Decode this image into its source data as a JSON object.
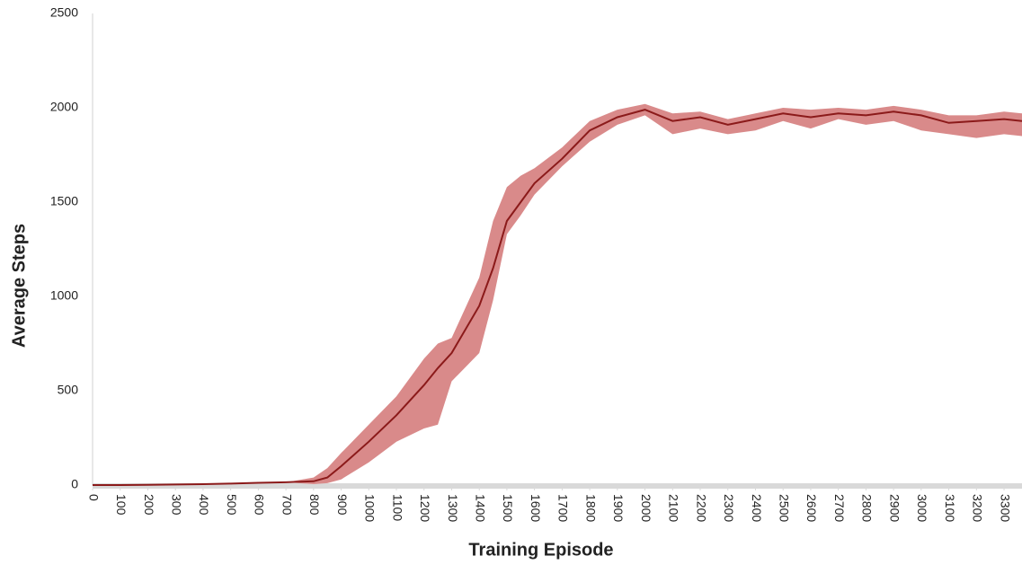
{
  "chart_data": {
    "type": "line",
    "x_label": "Training Episode",
    "y_label": "Average Steps",
    "x": [
      0,
      100,
      200,
      300,
      400,
      500,
      600,
      700,
      800,
      850,
      900,
      1000,
      1100,
      1200,
      1250,
      1300,
      1400,
      1450,
      1500,
      1550,
      1600,
      1700,
      1800,
      1900,
      2000,
      2100,
      2200,
      2300,
      2400,
      2500,
      2600,
      2700,
      2800,
      2900,
      3000,
      3100,
      3200,
      3300,
      3365
    ],
    "series": [
      {
        "color": "#8b1a1a",
        "values": [
          0,
          0,
          1,
          3,
          5,
          8,
          12,
          15,
          20,
          40,
          100,
          230,
          370,
          530,
          620,
          700,
          950,
          1150,
          1400,
          1500,
          1600,
          1730,
          1880,
          1950,
          1990,
          1930,
          1950,
          1910,
          1940,
          1970,
          1950,
          1970,
          1960,
          1980,
          1960,
          1920,
          1930,
          1940,
          1930
        ]
      }
    ],
    "band": {
      "color": "#d98a8a",
      "upper": [
        0,
        0,
        1,
        3,
        5,
        8,
        12,
        15,
        40,
        90,
        170,
        320,
        470,
        670,
        750,
        780,
        1100,
        1400,
        1580,
        1640,
        1680,
        1790,
        1930,
        1990,
        2020,
        1970,
        1980,
        1940,
        1970,
        2000,
        1990,
        2000,
        1990,
        2010,
        1990,
        1960,
        1960,
        1980,
        1970
      ],
      "lower": [
        0,
        0,
        1,
        3,
        5,
        8,
        12,
        15,
        5,
        10,
        30,
        120,
        230,
        300,
        320,
        550,
        700,
        980,
        1330,
        1430,
        1540,
        1690,
        1820,
        1910,
        1960,
        1860,
        1890,
        1860,
        1880,
        1930,
        1890,
        1940,
        1910,
        1930,
        1880,
        1860,
        1840,
        1860,
        1850
      ]
    },
    "xlim": [
      0,
      3365
    ],
    "ylim": [
      0,
      2500
    ],
    "xticks": [
      0,
      100,
      200,
      300,
      400,
      500,
      600,
      700,
      800,
      900,
      1000,
      1100,
      1200,
      1300,
      1400,
      1500,
      1600,
      1700,
      1800,
      1900,
      2000,
      2100,
      2200,
      2300,
      2400,
      2500,
      2600,
      2700,
      2800,
      2900,
      3000,
      3100,
      3200,
      3300
    ],
    "yticks": [
      0,
      500,
      1000,
      1500,
      2000,
      2500
    ]
  }
}
